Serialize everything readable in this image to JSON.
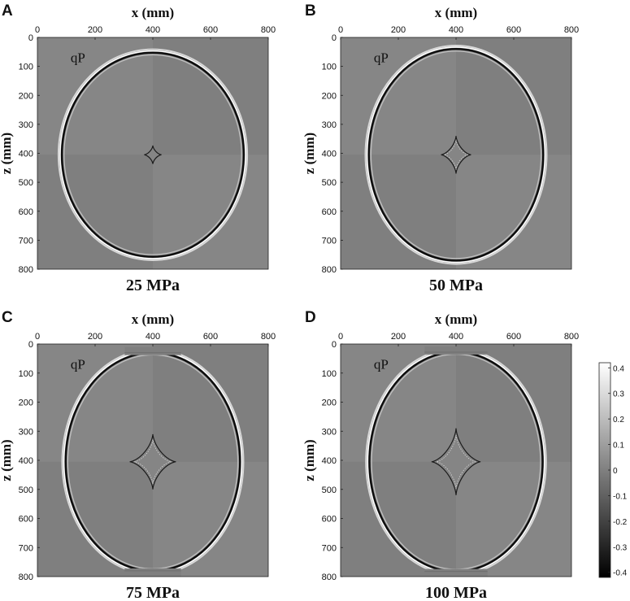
{
  "chart_data": [
    {
      "type": "heatmap",
      "panel_letter": "A",
      "caption": "25 MPa",
      "wavefront_label": "qP",
      "xlabel": "x (mm)",
      "ylabel": "z (mm)",
      "xlim": [
        0,
        800
      ],
      "ylim": [
        800,
        0
      ],
      "x_ticks": [
        "0",
        "200",
        "400",
        "600",
        "800"
      ],
      "y_ticks": [
        "0",
        "100",
        "200",
        "300",
        "400",
        "500",
        "600",
        "700",
        "800"
      ],
      "qP_front": {
        "center_x": 400,
        "center_z": 405,
        "semi_axis_x": 318,
        "semi_axis_z": 355
      },
      "cusp": {
        "center_x": 400,
        "center_z": 405,
        "half_width": 30,
        "half_height": 32
      }
    },
    {
      "type": "heatmap",
      "panel_letter": "B",
      "caption": "50 MPa",
      "wavefront_label": "qP",
      "xlabel": "x (mm)",
      "ylabel": "z (mm)",
      "xlim": [
        0,
        800
      ],
      "ylim": [
        800,
        0
      ],
      "x_ticks": [
        "0",
        "200",
        "400",
        "600",
        "800"
      ],
      "y_ticks": [
        "0",
        "100",
        "200",
        "300",
        "400",
        "500",
        "600",
        "700",
        "800"
      ],
      "qP_front": {
        "center_x": 400,
        "center_z": 405,
        "semi_axis_x": 305,
        "semi_axis_z": 368
      },
      "cusp": {
        "center_x": 400,
        "center_z": 405,
        "half_width": 52,
        "half_height": 65
      }
    },
    {
      "type": "heatmap",
      "panel_letter": "C",
      "caption": "75 MPa",
      "wavefront_label": "qP",
      "xlabel": "x (mm)",
      "ylabel": "z (mm)",
      "xlim": [
        0,
        800
      ],
      "ylim": [
        800,
        0
      ],
      "x_ticks": [
        "0",
        "200",
        "400",
        "600",
        "800"
      ],
      "y_ticks": [
        "0",
        "100",
        "200",
        "300",
        "400",
        "500",
        "600",
        "700",
        "800"
      ],
      "qP_front": {
        "center_x": 400,
        "center_z": 405,
        "semi_axis_x": 305,
        "semi_axis_z": 378
      },
      "cusp": {
        "center_x": 400,
        "center_z": 405,
        "half_width": 80,
        "half_height": 95
      }
    },
    {
      "type": "heatmap",
      "panel_letter": "D",
      "caption": "100 MPa",
      "wavefront_label": "qP",
      "xlabel": "x (mm)",
      "ylabel": "z (mm)",
      "xlim": [
        0,
        800
      ],
      "ylim": [
        800,
        0
      ],
      "x_ticks": [
        "0",
        "200",
        "400",
        "600",
        "800"
      ],
      "y_ticks": [
        "0",
        "100",
        "200",
        "300",
        "400",
        "500",
        "600",
        "700",
        "800"
      ],
      "qP_front": {
        "center_x": 400,
        "center_z": 405,
        "semi_axis_x": 303,
        "semi_axis_z": 380
      },
      "cusp": {
        "center_x": 400,
        "center_z": 405,
        "half_width": 85,
        "half_height": 115
      }
    }
  ],
  "colorbar": {
    "range": [
      -0.42,
      0.42
    ],
    "ticks": [
      "0.4",
      "0.3",
      "0.2",
      "0.1",
      "0",
      "-0.1",
      "-0.2",
      "-0.3",
      "-0.4"
    ],
    "tick_values": [
      0.4,
      0.3,
      0.2,
      0.1,
      0,
      -0.1,
      -0.2,
      -0.3,
      -0.4
    ],
    "colormap": "gray",
    "background_color": "#7f7f7f"
  }
}
